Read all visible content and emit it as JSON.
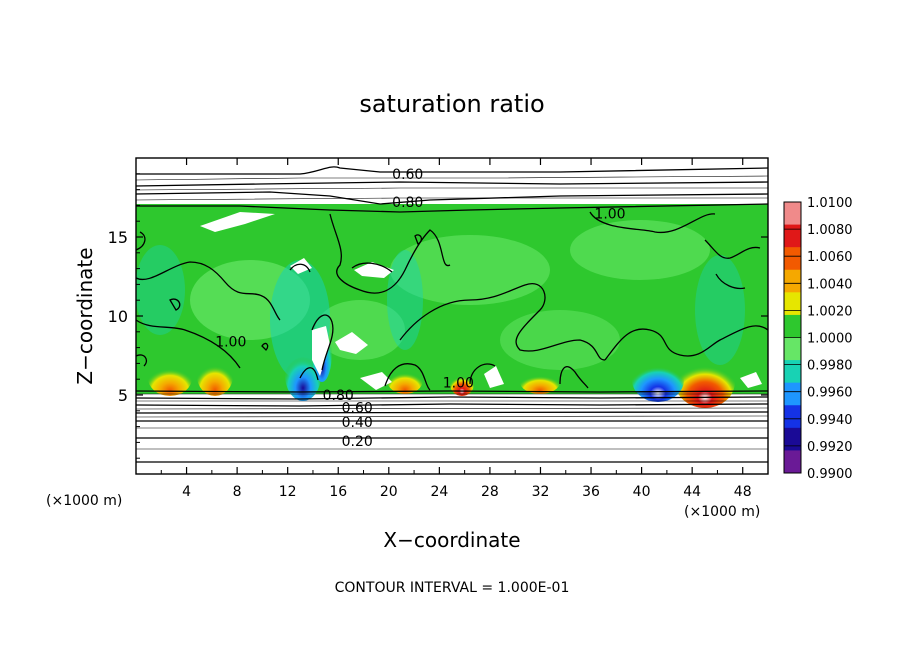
{
  "chart_data": {
    "type": "heatmap",
    "title": "saturation ratio",
    "xlabel": "X−coordinate",
    "ylabel": "Z−coordinate",
    "x_unit": "(×1000 m)",
    "y_unit": "(×1000 m)",
    "xlim": [
      0,
      50
    ],
    "ylim": [
      0,
      20
    ],
    "x_ticks": [
      4,
      8,
      12,
      16,
      20,
      24,
      28,
      32,
      36,
      40,
      44,
      48
    ],
    "y_ticks": [
      5,
      10,
      15
    ],
    "colorbar": {
      "levels": [
        "1.0100",
        "1.0080",
        "1.0060",
        "1.0040",
        "1.0020",
        "1.0000",
        "0.9980",
        "0.9960",
        "0.9940",
        "0.9920",
        "0.9900"
      ],
      "colors": [
        "#f08a8a",
        "#e01818",
        "#f25a00",
        "#f5a800",
        "#e6e600",
        "#2ec82e",
        "#66e666",
        "#18d2b4",
        "#1e96ff",
        "#1432e6",
        "#1a0a96",
        "#6a1a96"
      ]
    },
    "contour_labels": [
      {
        "text": "0.60",
        "x": 21.5,
        "y": 19.0
      },
      {
        "text": "0.80",
        "x": 21.5,
        "y": 17.2
      },
      {
        "text": "1.00",
        "x": 37.5,
        "y": 16.5
      },
      {
        "text": "1.00",
        "x": 7.5,
        "y": 8.4
      },
      {
        "text": "1.00",
        "x": 25.5,
        "y": 5.8
      },
      {
        "text": "0.80",
        "x": 16.0,
        "y": 5.0
      },
      {
        "text": "0.60",
        "x": 17.5,
        "y": 4.2
      },
      {
        "text": "0.40",
        "x": 17.5,
        "y": 3.3
      },
      {
        "text": "0.20",
        "x": 17.5,
        "y": 2.1
      }
    ],
    "footer": "CONTOUR INTERVAL = 1.000E-01"
  }
}
